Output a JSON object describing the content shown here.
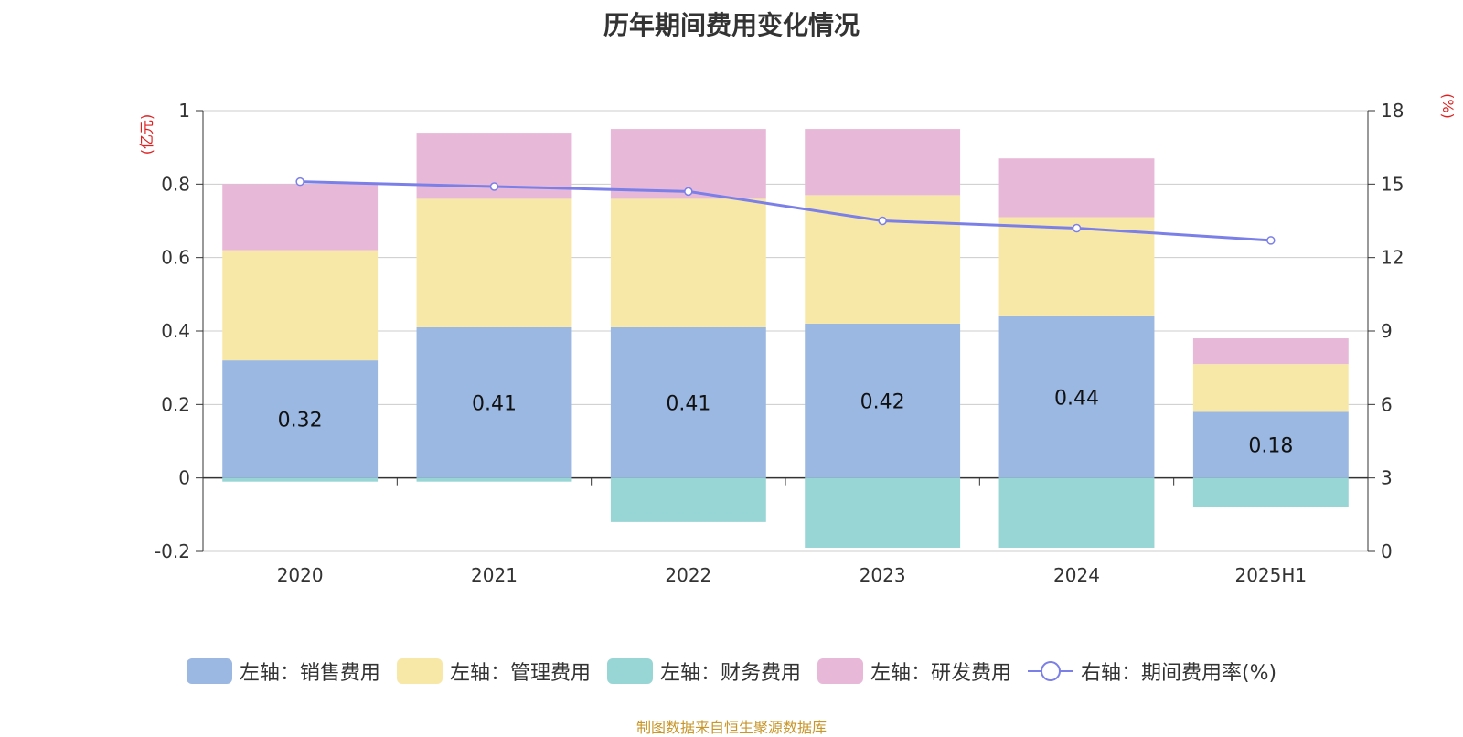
{
  "source_note": "制图数据来自恒生聚源数据库",
  "chart_data": {
    "type": "bar",
    "stacked": true,
    "title": "历年期间费用变化情况",
    "categories": [
      "2020",
      "2021",
      "2022",
      "2023",
      "2024",
      "2025H1"
    ],
    "left_axis": {
      "unit": "(亿元)",
      "ylim": [
        -0.2,
        1
      ],
      "ticks": [
        "-0.2",
        "0",
        "0.2",
        "0.4",
        "0.6",
        "0.8",
        "1"
      ]
    },
    "right_axis": {
      "unit": "(%)",
      "ylim": [
        0,
        18
      ],
      "ticks": [
        "0",
        "3",
        "6",
        "9",
        "12",
        "15",
        "18"
      ]
    },
    "series": [
      {
        "name": "左轴：销售费用",
        "axis": "left",
        "color": "#9bb8e2",
        "values": [
          0.32,
          0.41,
          0.41,
          0.42,
          0.44,
          0.18
        ],
        "labels": [
          "0.32",
          "0.41",
          "0.41",
          "0.42",
          "0.44",
          "0.18"
        ]
      },
      {
        "name": "左轴：管理费用",
        "axis": "left",
        "color": "#f8e8a8",
        "values": [
          0.3,
          0.35,
          0.35,
          0.35,
          0.27,
          0.13
        ]
      },
      {
        "name": "左轴：财务费用",
        "axis": "left",
        "color": "#98d5d5",
        "values": [
          -0.01,
          -0.01,
          -0.12,
          -0.19,
          -0.19,
          -0.08
        ]
      },
      {
        "name": "左轴：研发费用",
        "axis": "left",
        "color": "#e8b8d8",
        "values": [
          0.18,
          0.18,
          0.19,
          0.18,
          0.16,
          0.07
        ]
      }
    ],
    "line_series": {
      "name": "右轴：期间费用率(%)",
      "axis": "right",
      "color": "#7b7fe8",
      "values": [
        15.1,
        14.9,
        14.7,
        13.5,
        13.2,
        12.7
      ]
    },
    "grid": true,
    "legend_position": "bottom"
  }
}
